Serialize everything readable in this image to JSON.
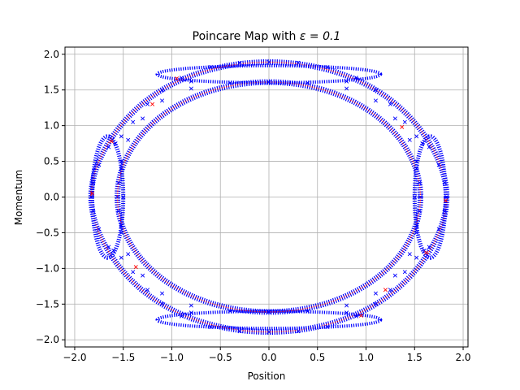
{
  "chart_data": {
    "type": "scatter",
    "title_prefix": "Poincare Map with ",
    "title_math": "ε = 0.1",
    "xlabel": "Position",
    "ylabel": "Momentum",
    "xlim": [
      -2.1,
      2.05
    ],
    "ylim": [
      -2.1,
      2.1
    ],
    "xticks": [
      -2.0,
      -1.5,
      -1.0,
      -0.5,
      0.0,
      0.5,
      1.0,
      1.5,
      2.0
    ],
    "xtick_labels": [
      "−2.0",
      "−1.5",
      "−1.0",
      "−0.5",
      "0.0",
      "0.5",
      "1.0",
      "1.5",
      "2.0"
    ],
    "yticks": [
      -2.0,
      -1.5,
      -1.0,
      -0.5,
      0.0,
      0.5,
      1.0,
      1.5,
      2.0
    ],
    "ytick_labels": [
      "−2.0",
      "−1.5",
      "−1.0",
      "−0.5",
      "0.0",
      "0.5",
      "1.0",
      "1.5",
      "2.0"
    ],
    "grid": true,
    "colors": {
      "points": "#0000ff",
      "accent": "#ff0000",
      "grid": "#b0b0b0",
      "axes": "#000000"
    },
    "series": [
      {
        "color": "#0000ff",
        "marker": "x",
        "points": [
          [
            0.0,
            1.89
          ],
          [
            0.3,
            1.88
          ],
          [
            0.6,
            1.82
          ],
          [
            0.9,
            1.67
          ],
          [
            1.1,
            1.5
          ],
          [
            1.25,
            1.3
          ],
          [
            1.4,
            1.05
          ],
          [
            1.52,
            0.85
          ],
          [
            1.65,
            0.7
          ],
          [
            1.75,
            0.45
          ],
          [
            1.81,
            0.2
          ],
          [
            1.83,
            0.0
          ],
          [
            1.81,
            -0.2
          ],
          [
            1.75,
            -0.45
          ],
          [
            1.65,
            -0.7
          ],
          [
            1.52,
            -0.85
          ],
          [
            1.4,
            -1.05
          ],
          [
            1.25,
            -1.3
          ],
          [
            1.1,
            -1.5
          ],
          [
            0.9,
            -1.67
          ],
          [
            0.6,
            -1.82
          ],
          [
            0.3,
            -1.88
          ],
          [
            0.0,
            -1.89
          ],
          [
            -0.3,
            -1.88
          ],
          [
            -0.6,
            -1.82
          ],
          [
            -0.9,
            -1.67
          ],
          [
            -1.1,
            -1.5
          ],
          [
            -1.25,
            -1.3
          ],
          [
            -1.4,
            -1.05
          ],
          [
            -1.52,
            -0.85
          ],
          [
            -1.65,
            -0.7
          ],
          [
            -1.75,
            -0.45
          ],
          [
            -1.81,
            -0.2
          ],
          [
            -1.83,
            0.0
          ],
          [
            -1.81,
            0.2
          ],
          [
            -1.75,
            0.45
          ],
          [
            -1.65,
            0.7
          ],
          [
            -1.52,
            0.85
          ],
          [
            -1.4,
            1.05
          ],
          [
            -1.25,
            1.3
          ],
          [
            -1.1,
            1.5
          ],
          [
            -0.9,
            1.67
          ],
          [
            -0.6,
            1.82
          ],
          [
            -0.3,
            1.88
          ],
          [
            0.0,
            1.61
          ],
          [
            0.4,
            1.6
          ],
          [
            0.8,
            1.52
          ],
          [
            1.1,
            1.35
          ],
          [
            1.3,
            1.1
          ],
          [
            1.45,
            0.8
          ],
          [
            1.52,
            0.5
          ],
          [
            1.55,
            0.2
          ],
          [
            1.56,
            0.0
          ],
          [
            1.55,
            -0.2
          ],
          [
            1.52,
            -0.5
          ],
          [
            1.45,
            -0.8
          ],
          [
            1.3,
            -1.1
          ],
          [
            1.1,
            -1.35
          ],
          [
            0.8,
            -1.52
          ],
          [
            0.4,
            -1.6
          ],
          [
            0.0,
            -1.61
          ],
          [
            -0.4,
            -1.6
          ],
          [
            -0.8,
            -1.52
          ],
          [
            -1.1,
            -1.35
          ],
          [
            -1.3,
            -1.1
          ],
          [
            -1.45,
            -0.8
          ],
          [
            -1.52,
            -0.5
          ],
          [
            -1.55,
            -0.2
          ],
          [
            -1.56,
            0.0
          ],
          [
            -1.55,
            0.2
          ],
          [
            -1.52,
            0.5
          ],
          [
            -1.45,
            0.8
          ],
          [
            -1.3,
            1.1
          ],
          [
            -1.1,
            1.35
          ],
          [
            -0.8,
            1.52
          ],
          [
            -0.4,
            1.6
          ],
          [
            1.5,
            0.0
          ],
          [
            1.52,
            0.4
          ],
          [
            1.58,
            0.75
          ],
          [
            1.6,
            -0.75
          ],
          [
            1.52,
            -0.4
          ],
          [
            -1.5,
            0.0
          ],
          [
            -1.52,
            0.4
          ],
          [
            -1.58,
            0.75
          ],
          [
            -1.6,
            -0.75
          ],
          [
            -1.52,
            -0.4
          ],
          [
            -0.8,
            1.62
          ],
          [
            0.8,
            1.62
          ],
          [
            -0.8,
            -1.62
          ],
          [
            0.8,
            -1.62
          ]
        ]
      },
      {
        "color": "#ff0000",
        "marker": "x",
        "points": [
          [
            -1.2,
            1.3
          ],
          [
            1.2,
            -1.3
          ],
          [
            1.37,
            0.98
          ],
          [
            -1.37,
            -0.98
          ],
          [
            -1.62,
            0.78
          ],
          [
            1.62,
            -0.78
          ],
          [
            -0.95,
            1.66
          ],
          [
            0.95,
            -1.66
          ],
          [
            -1.82,
            0.05
          ],
          [
            1.82,
            -0.05
          ]
        ]
      }
    ]
  }
}
